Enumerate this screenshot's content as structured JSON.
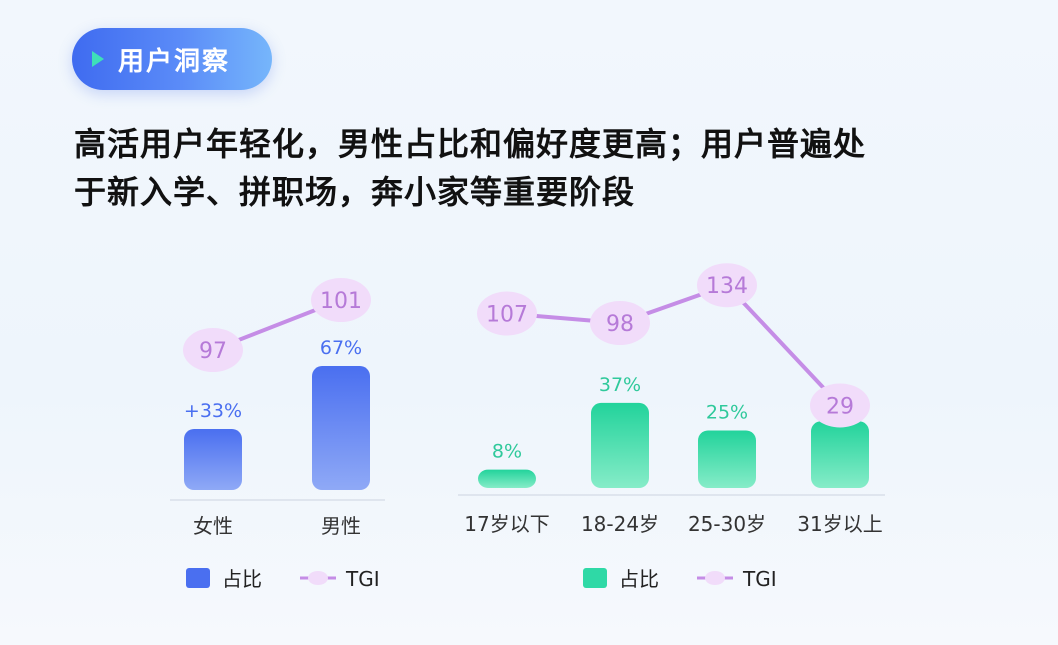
{
  "header": {
    "badge": "用户洞察",
    "headline_line1": "高活用户年轻化，男性占比和偏好度更高；用户普遍处",
    "headline_line2": "于新入学、拼职场，奔小家等重要阶段"
  },
  "colors": {
    "gender_bar": "#4a6ff0",
    "age_bar": "#2fd9a6",
    "tgi_line": "#c58de6",
    "tgi_bubble": "#f1dcfa"
  },
  "chart_data": [
    {
      "type": "bar",
      "categories": [
        "女性",
        "男性"
      ],
      "bar_labels": [
        "+33%",
        "67%"
      ],
      "series": [
        {
          "name": "占比",
          "values": [
            33,
            67
          ]
        },
        {
          "name": "TGI",
          "values": [
            97,
            101
          ]
        }
      ],
      "legend": [
        "占比",
        "TGI"
      ],
      "legend_position": "bottom",
      "grid": false
    },
    {
      "type": "bar",
      "categories": [
        "17岁以下",
        "18-24岁",
        "25-30岁",
        "31岁以上"
      ],
      "bar_labels": [
        "8%",
        "37%",
        "25%",
        "29%"
      ],
      "series": [
        {
          "name": "占比",
          "values": [
            8,
            37,
            25,
            29
          ]
        },
        {
          "name": "TGI",
          "values": [
            107,
            98,
            134,
            29
          ]
        }
      ],
      "legend": [
        "占比",
        "TGI"
      ],
      "legend_position": "bottom",
      "grid": false
    }
  ]
}
